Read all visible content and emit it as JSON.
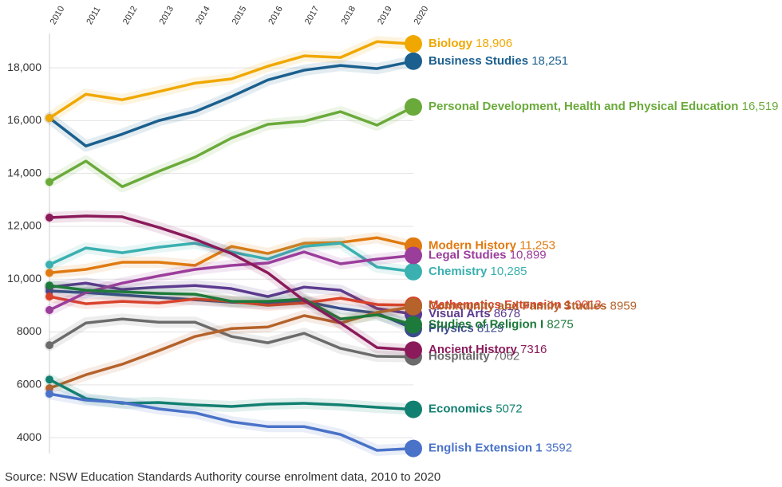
{
  "chart_data": {
    "type": "line",
    "source": "Source: NSW Education Standards Authority course enrolment data, 2010 to 2020",
    "categories": [
      "2010",
      "2011",
      "2012",
      "2013",
      "2014",
      "2015",
      "2016",
      "2017",
      "2018",
      "2019",
      "2020"
    ],
    "ylim": [
      3400,
      19300
    ],
    "yticks": [
      4000,
      6000,
      8000,
      {
        "value": 10000,
        "label": "10,000"
      },
      {
        "value": 12000,
        "label": "12,000"
      },
      {
        "value": 14000,
        "label": "14,000"
      },
      {
        "value": 16000,
        "label": "16,000"
      },
      {
        "value": 18000,
        "label": "18,000"
      }
    ],
    "grid": true,
    "series": [
      {
        "name": "Hospitality",
        "color": "#6b6b6b",
        "values": [
          7500,
          8340,
          8490,
          8370,
          8370,
          7830,
          7590,
          7950,
          7380,
          7080,
          7062
        ],
        "value_labels": [
          null,
          null,
          null,
          null,
          null,
          null,
          null,
          null,
          null,
          null,
          "7062"
        ]
      },
      {
        "name": "Physics",
        "color": "#3b4c8c",
        "values": [
          9550,
          9490,
          9400,
          9310,
          9220,
          9130,
          9070,
          9160,
          8890,
          8710,
          8129
        ],
        "value_labels": [
          null,
          null,
          null,
          null,
          null,
          null,
          null,
          null,
          null,
          null,
          "8129"
        ]
      },
      {
        "name": "Visual Arts",
        "color": "#5b3a8e",
        "values": [
          9700,
          9850,
          9610,
          9700,
          9760,
          9640,
          9340,
          9700,
          9580,
          8890,
          8678
        ],
        "value_labels": [
          null,
          null,
          null,
          null,
          null,
          null,
          null,
          null,
          null,
          null,
          "8678"
        ]
      },
      {
        "name": "Mathematics Extension 1",
        "color": "#d9412b",
        "values": [
          9340,
          9070,
          9160,
          9100,
          9250,
          9160,
          9010,
          9100,
          9280,
          9040,
          9013
        ],
        "value_labels": [
          null,
          null,
          null,
          null,
          null,
          null,
          null,
          null,
          null,
          null,
          "9013"
        ]
      },
      {
        "name": "Modern History",
        "color": "#e07a10",
        "values": [
          10240,
          10370,
          10640,
          10640,
          10520,
          11240,
          10970,
          11360,
          11390,
          11570,
          11253
        ],
        "value_labels": [
          null,
          null,
          null,
          null,
          null,
          null,
          null,
          null,
          null,
          null,
          "11,253"
        ]
      },
      {
        "name": "Chemistry",
        "color": "#3ab0b0",
        "values": [
          10550,
          11180,
          11000,
          11210,
          11360,
          11030,
          10760,
          11240,
          11360,
          10460,
          10285
        ],
        "value_labels": [
          null,
          null,
          null,
          null,
          null,
          null,
          null,
          null,
          null,
          null,
          "10,285"
        ]
      },
      {
        "name": "Legal Studies",
        "color": "#9b3d9b",
        "values": [
          8830,
          9490,
          9850,
          10120,
          10370,
          10520,
          10610,
          11030,
          10580,
          10760,
          10899
        ],
        "value_labels": [
          null,
          null,
          null,
          null,
          null,
          null,
          null,
          null,
          null,
          null,
          "10,899"
        ]
      },
      {
        "name": "Community and Family Studies",
        "color": "#b5622b",
        "values": [
          5870,
          6380,
          6780,
          7290,
          7830,
          8130,
          8190,
          8620,
          8340,
          8740,
          8959
        ],
        "value_labels": [
          null,
          null,
          null,
          null,
          null,
          null,
          null,
          null,
          null,
          null,
          "8959"
        ]
      },
      {
        "name": "Studies of Religion I",
        "color": "#1e7a3a",
        "values": [
          9760,
          9580,
          9520,
          9460,
          9430,
          9160,
          9160,
          9250,
          8490,
          8650,
          8275
        ],
        "value_labels": [
          null,
          null,
          null,
          null,
          null,
          null,
          null,
          null,
          null,
          null,
          "8275"
        ]
      },
      {
        "name": "Ancient History",
        "color": "#8b1a5a",
        "values": [
          12330,
          12390,
          12360,
          11960,
          11510,
          10970,
          10240,
          9190,
          8340,
          7410,
          7316
        ],
        "value_labels": [
          null,
          null,
          null,
          null,
          null,
          null,
          null,
          null,
          null,
          null,
          "7316"
        ]
      },
      {
        "name": "Economics",
        "color": "#128070",
        "values": [
          6200,
          5480,
          5300,
          5330,
          5240,
          5180,
          5270,
          5300,
          5240,
          5150,
          5072
        ],
        "value_labels": [
          null,
          null,
          null,
          null,
          null,
          null,
          null,
          null,
          null,
          null,
          "5072"
        ]
      },
      {
        "name": "English Extension 1",
        "color": "#4a72c8",
        "values": [
          5660,
          5420,
          5330,
          5090,
          4940,
          4600,
          4420,
          4420,
          4120,
          3520,
          3592
        ],
        "value_labels": [
          null,
          null,
          null,
          null,
          null,
          null,
          null,
          null,
          null,
          null,
          "3592"
        ]
      },
      {
        "name": "Personal Development, Health and Physical Education",
        "color": "#6aaa3a",
        "values": [
          13680,
          14470,
          13500,
          14080,
          14620,
          15340,
          15860,
          15980,
          16340,
          15830,
          16519
        ],
        "value_labels": [
          null,
          null,
          null,
          null,
          null,
          null,
          null,
          null,
          null,
          null,
          "16,519"
        ]
      },
      {
        "name": "Business Studies",
        "color": "#1a5f8e",
        "values": [
          16100,
          15040,
          15490,
          16000,
          16340,
          16910,
          17540,
          17910,
          18090,
          17970,
          18251
        ],
        "value_labels": [
          null,
          null,
          null,
          null,
          null,
          null,
          null,
          null,
          null,
          null,
          "18,251"
        ]
      },
      {
        "name": "Biology",
        "color": "#f0a800",
        "values": [
          16100,
          17000,
          16790,
          17100,
          17420,
          17580,
          18060,
          18450,
          18390,
          18990,
          18906
        ],
        "value_labels": [
          null,
          null,
          null,
          null,
          null,
          null,
          null,
          null,
          null,
          null,
          "18,906"
        ]
      }
    ]
  }
}
